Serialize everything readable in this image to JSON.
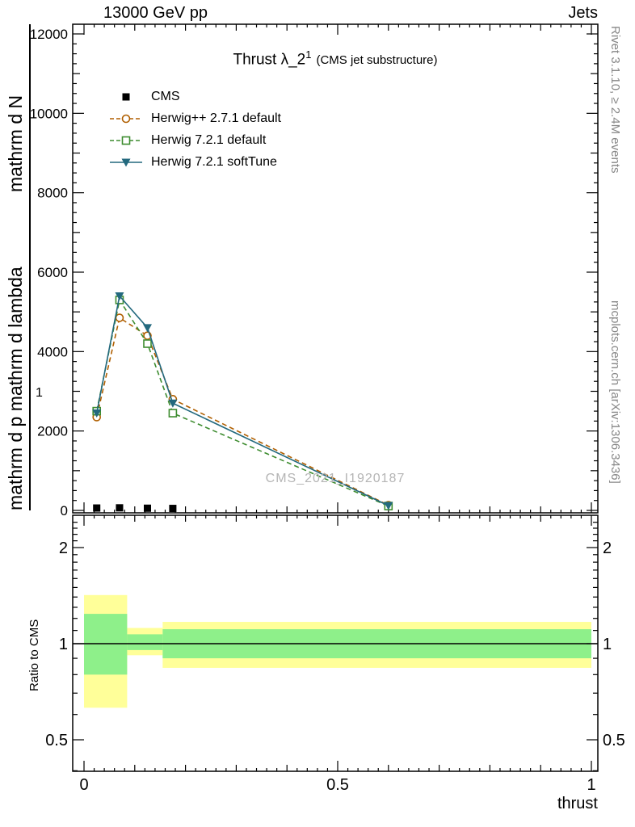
{
  "header": {
    "left": "13000 GeV pp",
    "right": "Jets"
  },
  "side_notes": {
    "right_top": "Rivet 3.1.10, ≥ 2.4M events",
    "right_bottom": "mcplots.cern.ch [arXiv:1306.3436]"
  },
  "main": {
    "title": "Thrust λ_2",
    "title_sup": "1",
    "title_suffix": "(CMS jet substructure)",
    "watermark": "CMS_2021_I1920187",
    "ylabel_line1": "mathrm d N",
    "ylabel_line2": "mathrm d p mathrm d lambda",
    "ylabel_extra": "1",
    "xlabel": "thrust",
    "ratio_label": "Ratio to CMS"
  },
  "legend": [
    {
      "label": "CMS",
      "marker": "square-filled",
      "color": "#000000",
      "line": "none"
    },
    {
      "label": "Herwig++ 2.7.1 default",
      "marker": "circle-open",
      "color": "#b05f00",
      "line": "dashed"
    },
    {
      "label": "Herwig 7.2.1 default",
      "marker": "square-open",
      "color": "#3d8c2f",
      "line": "dashed"
    },
    {
      "label": "Herwig 7.2.1 softTune",
      "marker": "triangle-down",
      "color": "#23697e",
      "line": "solid"
    }
  ],
  "chart_data": {
    "type": "line",
    "title": "Thrust λ_2^1 (CMS jet substructure)",
    "xlabel": "thrust",
    "ylabel": "mathrm d N / mathrm d p mathrm d lambda",
    "x": [
      0.025,
      0.07,
      0.125,
      0.175,
      0.6
    ],
    "series": [
      {
        "name": "CMS",
        "color": "#000000",
        "marker": "square-filled",
        "line": "none",
        "values": [
          60,
          65,
          55,
          50,
          null
        ]
      },
      {
        "name": "Herwig++ 2.7.1 default",
        "color": "#b05f00",
        "marker": "circle-open",
        "line": "dashed",
        "values": [
          2350,
          4850,
          4400,
          2800,
          130
        ]
      },
      {
        "name": "Herwig 7.2.1 default",
        "color": "#3d8c2f",
        "marker": "square-open",
        "line": "dashed",
        "values": [
          2500,
          5300,
          4200,
          2450,
          110
        ]
      },
      {
        "name": "Herwig 7.2.1 softTune",
        "color": "#23697e",
        "marker": "triangle-down",
        "line": "solid",
        "values": [
          2450,
          5400,
          4600,
          2700,
          120
        ]
      }
    ],
    "xlim": [
      -0.022,
      1.012
    ],
    "ylim": [
      0,
      12244
    ],
    "xticks": [
      0,
      0.5,
      1
    ],
    "yticks": [
      0,
      2000,
      4000,
      6000,
      8000,
      10000,
      12000
    ],
    "grid": false,
    "legend_position": "top-left",
    "ratio": {
      "ylog": true,
      "yticks": [
        0.5,
        1,
        2
      ],
      "ylim": [
        0.4,
        2.5
      ],
      "line_at": 1,
      "bands": [
        {
          "x0": 0.0,
          "x1": 0.085,
          "yellow": [
            0.63,
            1.42
          ],
          "green": [
            0.8,
            1.24
          ]
        },
        {
          "x0": 0.085,
          "x1": 0.155,
          "yellow": [
            0.92,
            1.12
          ],
          "green": [
            0.955,
            1.07
          ]
        },
        {
          "x0": 0.155,
          "x1": 1.0,
          "yellow": [
            0.84,
            1.17
          ],
          "green": [
            0.9,
            1.11
          ]
        }
      ],
      "colors": {
        "yellow": "#ffff99",
        "green": "#8ef08a"
      }
    }
  }
}
